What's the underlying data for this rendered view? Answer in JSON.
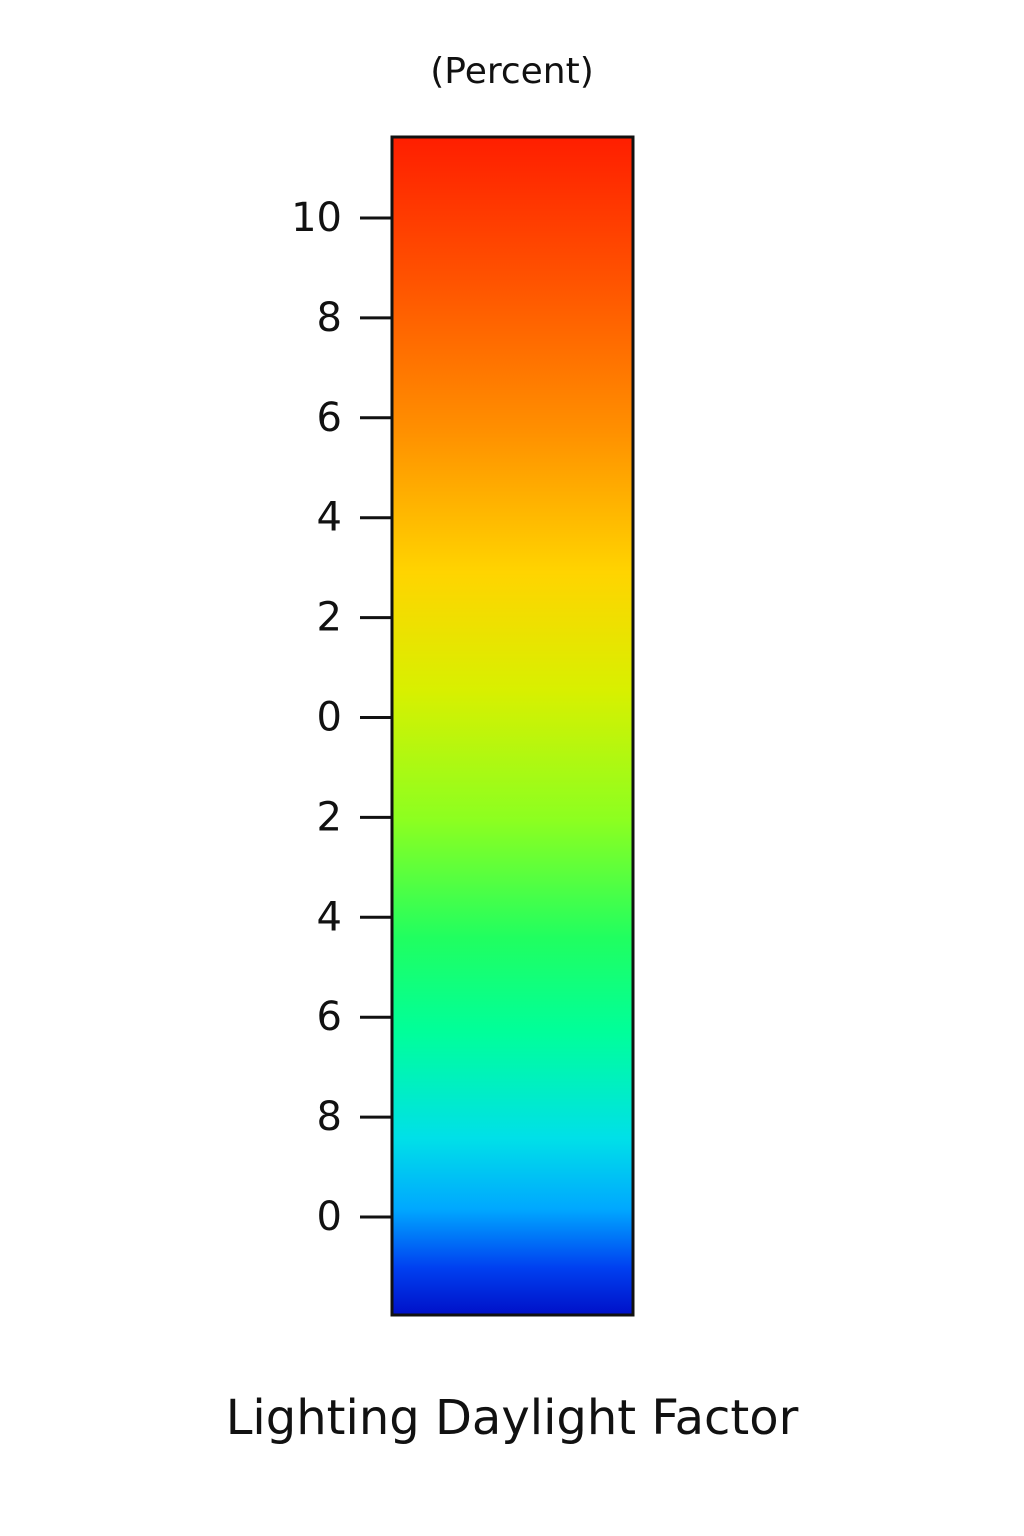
{
  "chart_data": {
    "type": "colorbar",
    "title": "Lighting Daylight Factor",
    "unit_label": "(Percent)",
    "tick_labels": [
      "10",
      "8",
      "6",
      "4",
      "2",
      "0",
      "2",
      "4",
      "6",
      "8",
      "0"
    ],
    "colormap_stops": [
      {
        "offset": 0.0,
        "color": "#ff1e00"
      },
      {
        "offset": 0.12,
        "color": "#ff5200"
      },
      {
        "offset": 0.25,
        "color": "#ff9000"
      },
      {
        "offset": 0.37,
        "color": "#ffd400"
      },
      {
        "offset": 0.47,
        "color": "#d8f000"
      },
      {
        "offset": 0.58,
        "color": "#8cff20"
      },
      {
        "offset": 0.68,
        "color": "#20ff60"
      },
      {
        "offset": 0.76,
        "color": "#00ff9a"
      },
      {
        "offset": 0.85,
        "color": "#00e0e8"
      },
      {
        "offset": 0.91,
        "color": "#00a8ff"
      },
      {
        "offset": 0.96,
        "color": "#0040f0"
      },
      {
        "offset": 1.0,
        "color": "#0010c8"
      }
    ],
    "frame_color": "#111111"
  }
}
